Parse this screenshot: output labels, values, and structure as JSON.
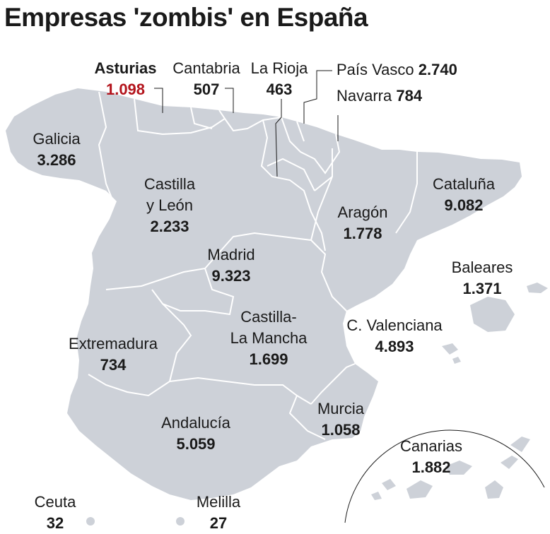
{
  "title": "Empresas 'zombis' en España",
  "colors": {
    "land": "#cdd1d8",
    "border": "#ffffff",
    "highlight": "#b3141c",
    "text": "#1a1a1a"
  },
  "regions": {
    "asturias": {
      "name": "Asturias",
      "value": "1.098"
    },
    "cantabria": {
      "name": "Cantabria",
      "value": "507"
    },
    "la_rioja": {
      "name": "La Rioja",
      "value": "463"
    },
    "pais_vasco": {
      "name": "País Vasco",
      "value": "2.740"
    },
    "navarra": {
      "name": "Navarra",
      "value": "784"
    },
    "galicia": {
      "name": "Galicia",
      "value": "3.286"
    },
    "castilla_leon": {
      "name": "Castilla y León",
      "name_line1": "Castilla",
      "name_line2": "y León",
      "value": "2.233"
    },
    "cataluna": {
      "name": "Cataluña",
      "value": "9.082"
    },
    "aragon": {
      "name": "Aragón",
      "value": "1.778"
    },
    "madrid": {
      "name": "Madrid",
      "value": "9.323"
    },
    "baleares": {
      "name": "Baleares",
      "value": "1.371"
    },
    "castilla_la_mancha": {
      "name": "Castilla-La Mancha",
      "name_line1": "Castilla-",
      "name_line2": "La Mancha",
      "value": "1.699"
    },
    "extremadura": {
      "name": "Extremadura",
      "value": "734"
    },
    "c_valenciana": {
      "name": "C. Valenciana",
      "value": "4.893"
    },
    "murcia": {
      "name": "Murcia",
      "value": "1.058"
    },
    "andalucia": {
      "name": "Andalucía",
      "value": "5.059"
    },
    "canarias": {
      "name": "Canarias",
      "value": "1.882"
    },
    "ceuta": {
      "name": "Ceuta",
      "value": "32"
    },
    "melilla": {
      "name": "Melilla",
      "value": "27"
    }
  }
}
